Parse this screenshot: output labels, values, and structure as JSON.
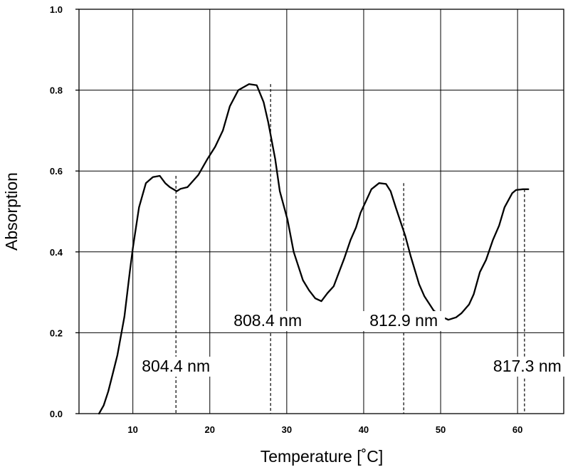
{
  "chart_data": {
    "type": "line",
    "title": "",
    "xlabel": "Temperature [˚C]",
    "ylabel": "Absorption",
    "xlim": [
      3,
      66
    ],
    "ylim": [
      0,
      1.0
    ],
    "x_ticks": [
      10,
      20,
      30,
      40,
      50,
      60
    ],
    "x_tick_labels": [
      "10",
      "20",
      "30",
      "40",
      "50",
      "60"
    ],
    "y_ticks": [
      0,
      0.2,
      0.4,
      0.6,
      0.8,
      1.0
    ],
    "y_tick_labels": [
      "0.0",
      "0.2",
      "0.4",
      "0.6",
      "0.8",
      "1.0"
    ],
    "grid": true,
    "series": [
      {
        "color": "#000000",
        "x": [
          5.6,
          6.2,
          6.8,
          7.4,
          8.0,
          8.9,
          9.6,
          10.0,
          10.8,
          11.7,
          12.6,
          13.5,
          14.2,
          14.8,
          15.7,
          16.2,
          17.1,
          18.5,
          19.7,
          20.7,
          21.7,
          22.6,
          23.7,
          25.1,
          26.1,
          27.0,
          27.6,
          28.5,
          29.1,
          30.1,
          30.9,
          32.1,
          32.9,
          33.7,
          34.5,
          35.3,
          36.1,
          36.9,
          37.5,
          38.3,
          39.0,
          39.6,
          40.4,
          41.0,
          42.0,
          42.9,
          43.5,
          44.2,
          45.4,
          46.1,
          47.2,
          47.9,
          49.1,
          50.1,
          51.0,
          52.0,
          52.7,
          53.7,
          54.3,
          55.1,
          55.9,
          56.8,
          57.6,
          58.3,
          59.3,
          59.8,
          60.7,
          61.4
        ],
        "y": [
          0.0,
          0.02,
          0.055,
          0.1,
          0.145,
          0.24,
          0.35,
          0.41,
          0.51,
          0.57,
          0.585,
          0.588,
          0.57,
          0.56,
          0.55,
          0.556,
          0.56,
          0.59,
          0.63,
          0.66,
          0.7,
          0.76,
          0.8,
          0.815,
          0.812,
          0.77,
          0.72,
          0.63,
          0.55,
          0.48,
          0.4,
          0.33,
          0.305,
          0.285,
          0.278,
          0.298,
          0.315,
          0.355,
          0.385,
          0.43,
          0.46,
          0.497,
          0.53,
          0.555,
          0.57,
          0.568,
          0.55,
          0.508,
          0.44,
          0.39,
          0.32,
          0.29,
          0.255,
          0.24,
          0.232,
          0.238,
          0.248,
          0.27,
          0.295,
          0.35,
          0.38,
          0.43,
          0.465,
          0.51,
          0.545,
          0.553,
          0.555,
          0.555
        ]
      }
    ],
    "annotations": [
      {
        "text": "804.4 nm",
        "x": 15.6,
        "y_top": 0.588
      },
      {
        "text": "808.4 nm",
        "x": 27.9,
        "y_top": 0.815
      },
      {
        "text": "812.9 nm",
        "x": 45.2,
        "y_top": 0.57
      },
      {
        "text": "817.3 nm",
        "x": 60.9,
        "y_top": 0.555
      }
    ]
  }
}
